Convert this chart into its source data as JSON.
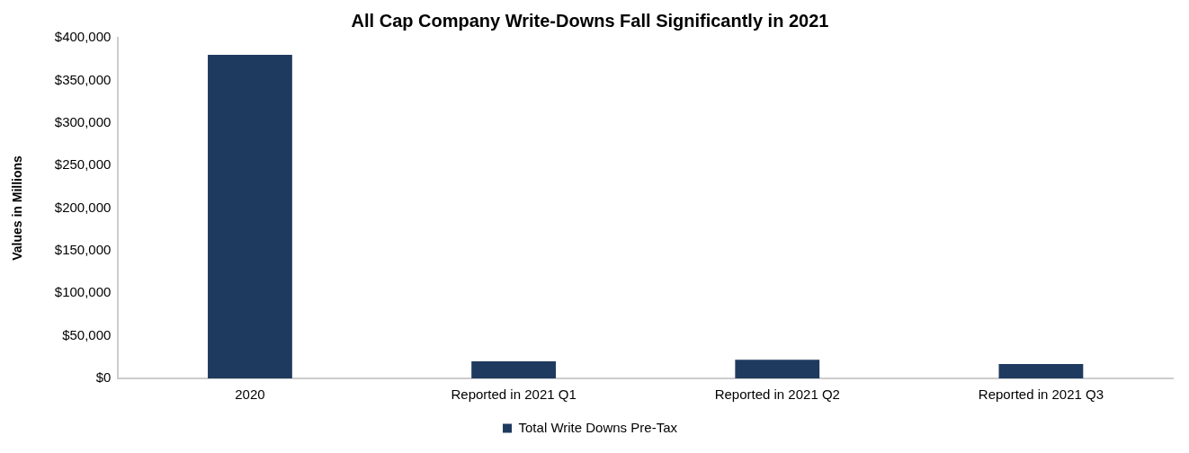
{
  "chart_data": {
    "type": "bar",
    "title": "All Cap Company Write-Downs Fall Significantly in 2021",
    "ylabel": "Values in Millions",
    "categories": [
      "2020",
      "Reported in 2021 Q1",
      "Reported in 2021 Q2",
      "Reported in 2021 Q3"
    ],
    "series": [
      {
        "name": "Total Write Downs Pre-Tax",
        "color": "#1f3a5f",
        "values": [
          380000,
          20000,
          22000,
          17000
        ]
      }
    ],
    "ylim": [
      0,
      400000
    ],
    "yticks": [
      {
        "value": 0,
        "label": "$0"
      },
      {
        "value": 50000,
        "label": "$50,000"
      },
      {
        "value": 100000,
        "label": "$100,000"
      },
      {
        "value": 150000,
        "label": "$150,000"
      },
      {
        "value": 200000,
        "label": "$200,000"
      },
      {
        "value": 250000,
        "label": "$250,000"
      },
      {
        "value": 300000,
        "label": "$300,000"
      },
      {
        "value": 350000,
        "label": "$350,000"
      },
      {
        "value": 400000,
        "label": "$400,000"
      }
    ],
    "grid": false,
    "legend": "bottom"
  }
}
